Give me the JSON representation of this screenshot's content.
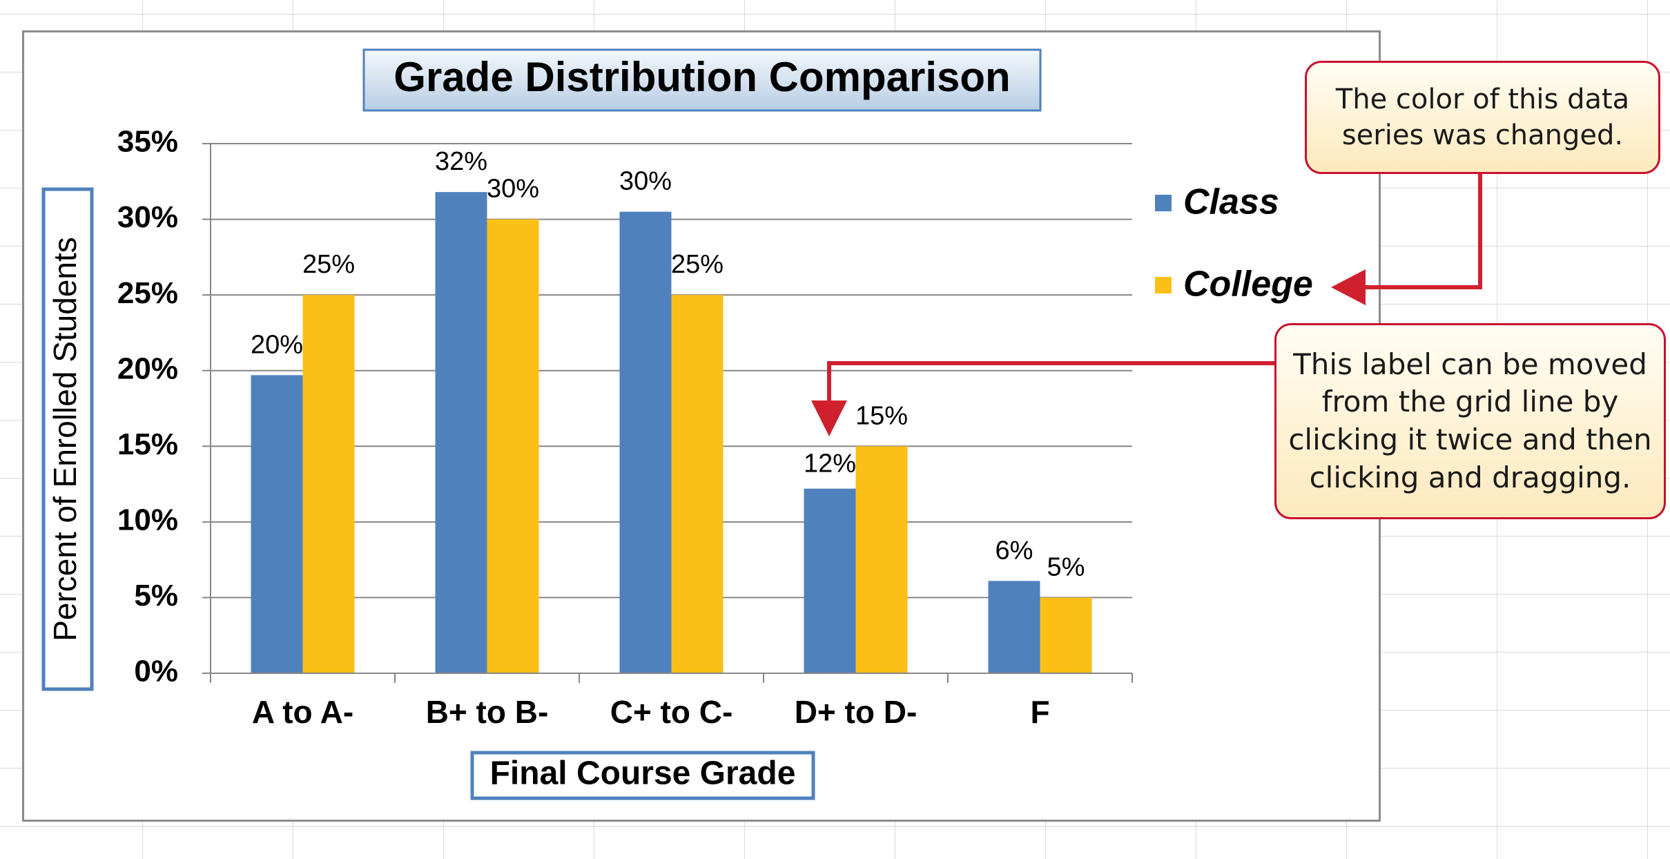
{
  "chart_data": {
    "type": "bar",
    "title": "Grade Distribution Comparison",
    "xlabel": "Final Course Grade",
    "ylabel": "Percent of Enrolled Students",
    "categories": [
      "A to A-",
      "B+ to B-",
      "C+ to C-",
      "D+ to D-",
      "F"
    ],
    "series": [
      {
        "name": "Class",
        "values": [
          0.197,
          0.318,
          0.305,
          0.122,
          0.061
        ],
        "labels": [
          "20%",
          "32%",
          "30%",
          "12%",
          "6%"
        ],
        "color": "#4f81bd"
      },
      {
        "name": "College",
        "values": [
          0.25,
          0.3,
          0.25,
          0.15,
          0.05
        ],
        "labels": [
          "25%",
          "30%",
          "25%",
          "15%",
          "5%"
        ],
        "color": "#fbbf17"
      }
    ],
    "yticks": [
      0,
      0.05,
      0.1,
      0.15,
      0.2,
      0.25,
      0.3,
      0.35
    ],
    "ytick_labels": [
      "0%",
      "5%",
      "10%",
      "15%",
      "20%",
      "25%",
      "30%",
      "35%"
    ],
    "ylim": [
      0,
      0.35
    ],
    "grid": true,
    "legend": "right"
  },
  "callouts": {
    "series_color": "The color of this data series was changed.",
    "label_move": "This label can be moved from the grid line by clicking it twice and then clicking and dragging."
  },
  "colors": {
    "class": "#4f81bd",
    "college": "#fbbf17",
    "callout_border": "#c8102e",
    "arrow": "#d0202e",
    "frame": "#4f81bd"
  }
}
